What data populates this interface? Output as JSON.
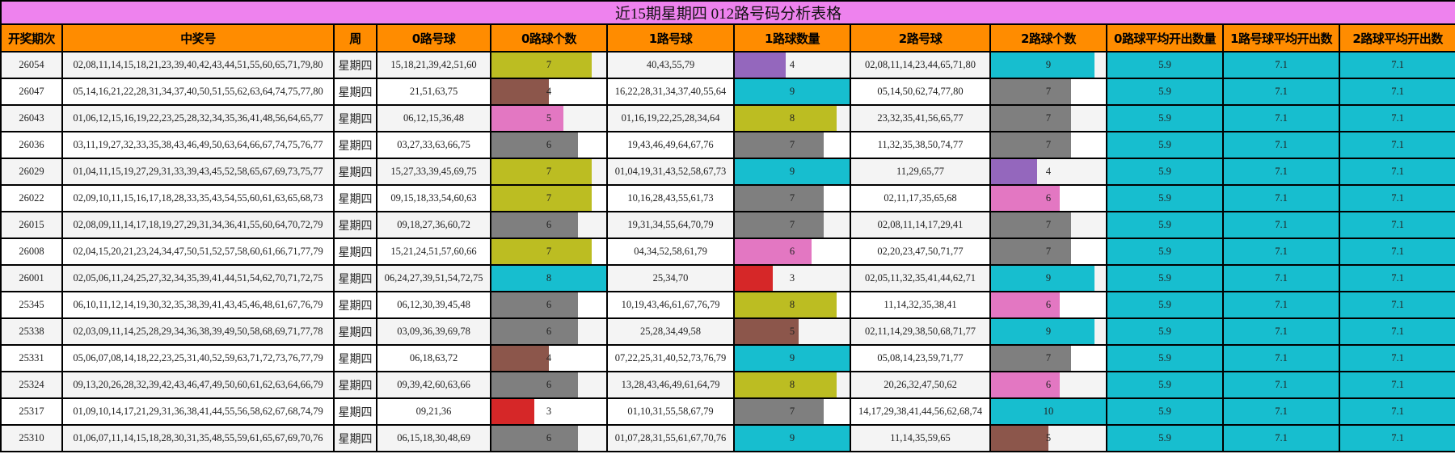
{
  "title": "近15期星期四 012路号码分析表格",
  "columns": [
    "开奖期次",
    "中奖号",
    "周",
    "0路号球",
    "0路球个数",
    "1路号球",
    "1路球数量",
    "2路号球",
    "2路球个数",
    "0路球平均开出数量",
    "1路号球平均开出数",
    "2路球平均开出数"
  ],
  "colors": {
    "title_bg": "#ee82ee",
    "header_bg": "#ff8c00",
    "avg_bg": "#17becf",
    "bar_palette": {
      "3": "#d62728",
      "4": "#8c564b",
      "5": "#e377c2",
      "6": "#7f7f7f",
      "7": "#bcbd22",
      "8": "#17becf",
      "9": "#17becf",
      "10": "#17becf"
    }
  },
  "bar_max": {
    "zero": 8,
    "one": 9,
    "two": 10
  },
  "rows": [
    {
      "period": "26054",
      "numbers": "02,08,11,14,15,18,21,23,39,40,42,43,44,51,55,60,65,71,79,80",
      "week": "星期四",
      "zero_balls": "15,18,21,39,42,51,60",
      "zero_count": "7",
      "zero_color": "#bcbd22",
      "one_balls": "40,43,55,79",
      "one_count": "4",
      "one_color": "#9467bd",
      "two_balls": "02,08,11,14,23,44,65,71,80",
      "two_count": "9",
      "two_color": "#17becf",
      "avg0": "5.9",
      "avg1": "7.1",
      "avg2": "7.1"
    },
    {
      "period": "26047",
      "numbers": "05,14,16,21,22,28,31,34,37,40,50,51,55,62,63,64,74,75,77,80",
      "week": "星期四",
      "zero_balls": "21,51,63,75",
      "zero_count": "4",
      "zero_color": "#8c564b",
      "one_balls": "16,22,28,31,34,37,40,55,64",
      "one_count": "9",
      "one_color": "#17becf",
      "two_balls": "05,14,50,62,74,77,80",
      "two_count": "7",
      "two_color": "#7f7f7f",
      "avg0": "5.9",
      "avg1": "7.1",
      "avg2": "7.1"
    },
    {
      "period": "26043",
      "numbers": "01,06,12,15,16,19,22,23,25,28,32,34,35,36,41,48,56,64,65,77",
      "week": "星期四",
      "zero_balls": "06,12,15,36,48",
      "zero_count": "5",
      "zero_color": "#e377c2",
      "one_balls": "01,16,19,22,25,28,34,64",
      "one_count": "8",
      "one_color": "#bcbd22",
      "two_balls": "23,32,35,41,56,65,77",
      "two_count": "7",
      "two_color": "#7f7f7f",
      "avg0": "5.9",
      "avg1": "7.1",
      "avg2": "7.1"
    },
    {
      "period": "26036",
      "numbers": "03,11,19,27,32,33,35,38,43,46,49,50,63,64,66,67,74,75,76,77",
      "week": "星期四",
      "zero_balls": "03,27,33,63,66,75",
      "zero_count": "6",
      "zero_color": "#7f7f7f",
      "one_balls": "19,43,46,49,64,67,76",
      "one_count": "7",
      "one_color": "#7f7f7f",
      "two_balls": "11,32,35,38,50,74,77",
      "two_count": "7",
      "two_color": "#7f7f7f",
      "avg0": "5.9",
      "avg1": "7.1",
      "avg2": "7.1"
    },
    {
      "period": "26029",
      "numbers": "01,04,11,15,19,27,29,31,33,39,43,45,52,58,65,67,69,73,75,77",
      "week": "星期四",
      "zero_balls": "15,27,33,39,45,69,75",
      "zero_count": "7",
      "zero_color": "#bcbd22",
      "one_balls": "01,04,19,31,43,52,58,67,73",
      "one_count": "9",
      "one_color": "#17becf",
      "two_balls": "11,29,65,77",
      "two_count": "4",
      "two_color": "#9467bd",
      "avg0": "5.9",
      "avg1": "7.1",
      "avg2": "7.1"
    },
    {
      "period": "26022",
      "numbers": "02,09,10,11,15,16,17,18,28,33,35,43,54,55,60,61,63,65,68,73",
      "week": "星期四",
      "zero_balls": "09,15,18,33,54,60,63",
      "zero_count": "7",
      "zero_color": "#bcbd22",
      "one_balls": "10,16,28,43,55,61,73",
      "one_count": "7",
      "one_color": "#7f7f7f",
      "two_balls": "02,11,17,35,65,68",
      "two_count": "6",
      "two_color": "#e377c2",
      "avg0": "5.9",
      "avg1": "7.1",
      "avg2": "7.1"
    },
    {
      "period": "26015",
      "numbers": "02,08,09,11,14,17,18,19,27,29,31,34,36,41,55,60,64,70,72,79",
      "week": "星期四",
      "zero_balls": "09,18,27,36,60,72",
      "zero_count": "6",
      "zero_color": "#7f7f7f",
      "one_balls": "19,31,34,55,64,70,79",
      "one_count": "7",
      "one_color": "#7f7f7f",
      "two_balls": "02,08,11,14,17,29,41",
      "two_count": "7",
      "two_color": "#7f7f7f",
      "avg0": "5.9",
      "avg1": "7.1",
      "avg2": "7.1"
    },
    {
      "period": "26008",
      "numbers": "02,04,15,20,21,23,24,34,47,50,51,52,57,58,60,61,66,71,77,79",
      "week": "星期四",
      "zero_balls": "15,21,24,51,57,60,66",
      "zero_count": "7",
      "zero_color": "#bcbd22",
      "one_balls": "04,34,52,58,61,79",
      "one_count": "6",
      "one_color": "#e377c2",
      "two_balls": "02,20,23,47,50,71,77",
      "two_count": "7",
      "two_color": "#7f7f7f",
      "avg0": "5.9",
      "avg1": "7.1",
      "avg2": "7.1"
    },
    {
      "period": "26001",
      "numbers": "02,05,06,11,24,25,27,32,34,35,39,41,44,51,54,62,70,71,72,75",
      "week": "星期四",
      "zero_balls": "06,24,27,39,51,54,72,75",
      "zero_count": "8",
      "zero_color": "#17becf",
      "one_balls": "25,34,70",
      "one_count": "3",
      "one_color": "#d62728",
      "two_balls": "02,05,11,32,35,41,44,62,71",
      "two_count": "9",
      "two_color": "#17becf",
      "avg0": "5.9",
      "avg1": "7.1",
      "avg2": "7.1"
    },
    {
      "period": "25345",
      "numbers": "06,10,11,12,14,19,30,32,35,38,39,41,43,45,46,48,61,67,76,79",
      "week": "星期四",
      "zero_balls": "06,12,30,39,45,48",
      "zero_count": "6",
      "zero_color": "#7f7f7f",
      "one_balls": "10,19,43,46,61,67,76,79",
      "one_count": "8",
      "one_color": "#bcbd22",
      "two_balls": "11,14,32,35,38,41",
      "two_count": "6",
      "two_color": "#e377c2",
      "avg0": "5.9",
      "avg1": "7.1",
      "avg2": "7.1"
    },
    {
      "period": "25338",
      "numbers": "02,03,09,11,14,25,28,29,34,36,38,39,49,50,58,68,69,71,77,78",
      "week": "星期四",
      "zero_balls": "03,09,36,39,69,78",
      "zero_count": "6",
      "zero_color": "#7f7f7f",
      "one_balls": "25,28,34,49,58",
      "one_count": "5",
      "one_color": "#8c564b",
      "two_balls": "02,11,14,29,38,50,68,71,77",
      "two_count": "9",
      "two_color": "#17becf",
      "avg0": "5.9",
      "avg1": "7.1",
      "avg2": "7.1"
    },
    {
      "period": "25331",
      "numbers": "05,06,07,08,14,18,22,23,25,31,40,52,59,63,71,72,73,76,77,79",
      "week": "星期四",
      "zero_balls": "06,18,63,72",
      "zero_count": "4",
      "zero_color": "#8c564b",
      "one_balls": "07,22,25,31,40,52,73,76,79",
      "one_count": "9",
      "one_color": "#17becf",
      "two_balls": "05,08,14,23,59,71,77",
      "two_count": "7",
      "two_color": "#7f7f7f",
      "avg0": "5.9",
      "avg1": "7.1",
      "avg2": "7.1"
    },
    {
      "period": "25324",
      "numbers": "09,13,20,26,28,32,39,42,43,46,47,49,50,60,61,62,63,64,66,79",
      "week": "星期四",
      "zero_balls": "09,39,42,60,63,66",
      "zero_count": "6",
      "zero_color": "#7f7f7f",
      "one_balls": "13,28,43,46,49,61,64,79",
      "one_count": "8",
      "one_color": "#bcbd22",
      "two_balls": "20,26,32,47,50,62",
      "two_count": "6",
      "two_color": "#e377c2",
      "avg0": "5.9",
      "avg1": "7.1",
      "avg2": "7.1"
    },
    {
      "period": "25317",
      "numbers": "01,09,10,14,17,21,29,31,36,38,41,44,55,56,58,62,67,68,74,79",
      "week": "星期四",
      "zero_balls": "09,21,36",
      "zero_count": "3",
      "zero_color": "#d62728",
      "one_balls": "01,10,31,55,58,67,79",
      "one_count": "7",
      "one_color": "#7f7f7f",
      "two_balls": "14,17,29,38,41,44,56,62,68,74",
      "two_count": "10",
      "two_color": "#17becf",
      "avg0": "5.9",
      "avg1": "7.1",
      "avg2": "7.1"
    },
    {
      "period": "25310",
      "numbers": "01,06,07,11,14,15,18,28,30,31,35,48,55,59,61,65,67,69,70,76",
      "week": "星期四",
      "zero_balls": "06,15,18,30,48,69",
      "zero_count": "6",
      "zero_color": "#7f7f7f",
      "one_balls": "01,07,28,31,55,61,67,70,76",
      "one_count": "9",
      "one_color": "#17becf",
      "two_balls": "11,14,35,59,65",
      "two_count": "5",
      "two_color": "#8c564b",
      "avg0": "5.9",
      "avg1": "7.1",
      "avg2": "7.1"
    }
  ]
}
